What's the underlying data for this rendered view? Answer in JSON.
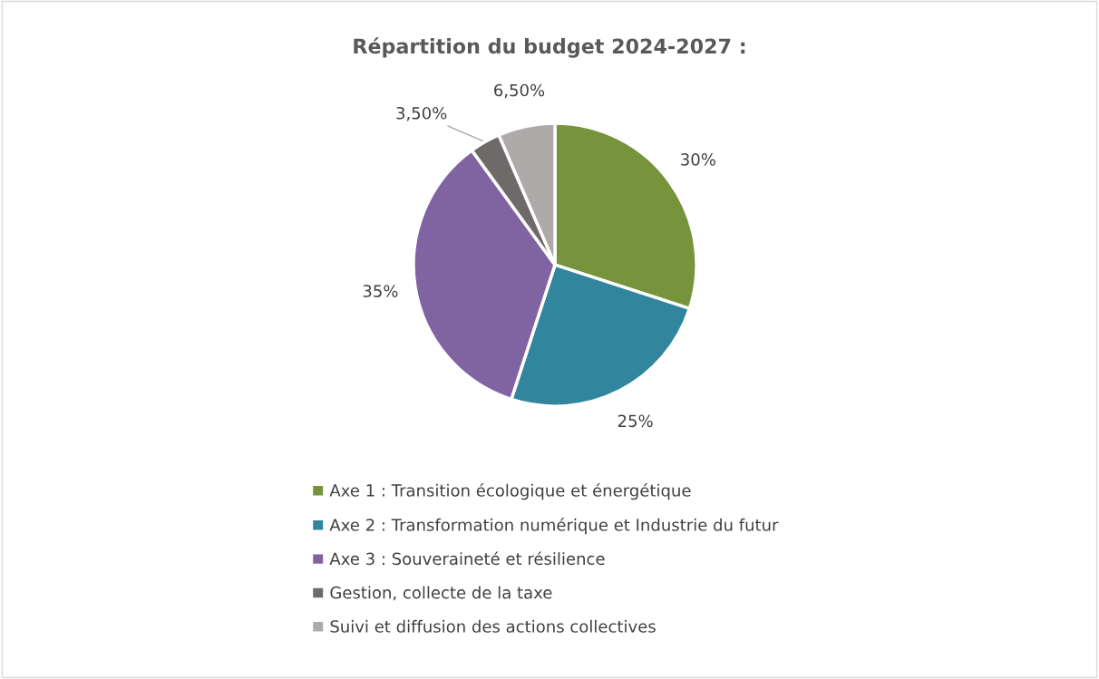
{
  "chart_data": {
    "type": "pie",
    "title": "Répartition du budget 2024-2027 :",
    "categories": [
      "Axe 1 : Transition écologique et énergétique",
      "Axe 2 : Transformation numérique et Industrie du futur",
      "Axe 3 : Souveraineté et résilience",
      "Gestion, collecte de la taxe",
      "Suivi et diffusion des actions collectives"
    ],
    "values": [
      30,
      25,
      35,
      3.5,
      6.5
    ],
    "value_labels": [
      "30%",
      "25%",
      "35%",
      "3,50%",
      "6,50%"
    ],
    "colors": [
      "#77933c",
      "#31859c",
      "#8064a2",
      "#6e6a6a",
      "#aeaaaa"
    ],
    "legend": "bottom"
  }
}
